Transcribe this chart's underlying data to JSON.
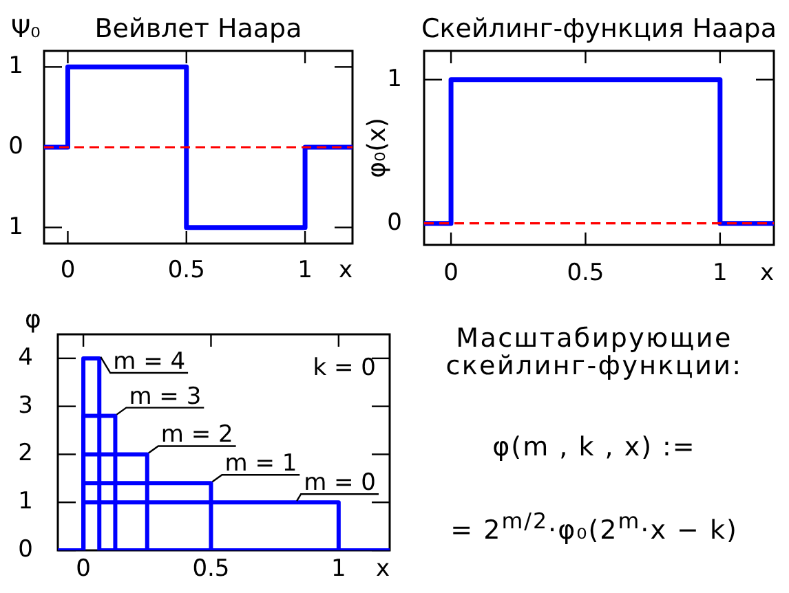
{
  "chart_data": [
    {
      "type": "step",
      "title": "Вейвлет Наара",
      "ylabel": "Ψ₀",
      "xlabel": "x",
      "x": [
        -0.1,
        0,
        0.5,
        1,
        1.2
      ],
      "values": [
        0,
        1,
        -1,
        0,
        0
      ],
      "color": "#0000ff",
      "xlim": [
        -0.1,
        1.2
      ],
      "xticks": [
        0,
        0.5,
        1
      ],
      "ylim": [
        -1.2,
        1.2
      ],
      "yticks": [
        {
          "value": -1,
          "label": "1"
        },
        0,
        1
      ],
      "ref_lines": [
        {
          "axis": "y",
          "value": 0,
          "color": "#ff0000",
          "line_style": "dashed"
        }
      ]
    },
    {
      "type": "step",
      "title": "Скейлинг-функция Наара",
      "ylabel": "φ₀(x)",
      "xlabel": "x",
      "x": [
        -0.1,
        0,
        1,
        1.2
      ],
      "values": [
        0,
        1,
        0,
        0
      ],
      "color": "#0000ff",
      "xlim": [
        -0.1,
        1.2
      ],
      "xticks": [
        0,
        0.5,
        1
      ],
      "ylim": [
        -0.15,
        1.2
      ],
      "yticks": [
        0,
        1
      ],
      "ref_lines": [
        {
          "axis": "y",
          "value": 0,
          "color": "#ff0000",
          "line_style": "dashed"
        }
      ]
    },
    {
      "type": "step",
      "ylabel": "φ",
      "xlabel": "x",
      "series": [
        {
          "name": "m = 0",
          "color": "#0000ff",
          "x": [
            -0.1,
            0,
            1,
            1.2
          ],
          "values": [
            0,
            1,
            0,
            0
          ]
        },
        {
          "name": "m = 1",
          "color": "#0000ff",
          "x": [
            -0.1,
            0,
            0.5,
            1.2
          ],
          "values": [
            0,
            1.4,
            0,
            0
          ]
        },
        {
          "name": "m = 2",
          "color": "#0000ff",
          "x": [
            -0.1,
            0,
            0.25,
            1.2
          ],
          "values": [
            0,
            2,
            0,
            0
          ]
        },
        {
          "name": "m = 3",
          "color": "#0000ff",
          "x": [
            -0.1,
            0,
            0.125,
            1.2
          ],
          "values": [
            0,
            2.8,
            0,
            0
          ]
        },
        {
          "name": "m = 4",
          "color": "#0000ff",
          "x": [
            -0.1,
            0,
            0.0625,
            1.2
          ],
          "values": [
            0,
            4,
            0,
            0
          ]
        }
      ],
      "xlim": [
        -0.1,
        1.2
      ],
      "xticks": [
        0,
        0.5,
        1
      ],
      "ylim": [
        0,
        4.5
      ],
      "yticks": [
        0,
        1,
        2,
        3,
        4
      ],
      "annotations": [
        "k = 0"
      ]
    },
    {
      "type": "other",
      "title": "Масштабирующие скейлинг-функции:",
      "annotations": [
        "φ(m , k , x) :=",
        "= 2$^{m/2}$·φ₀(2$^{m}$·x − k)"
      ]
    }
  ]
}
